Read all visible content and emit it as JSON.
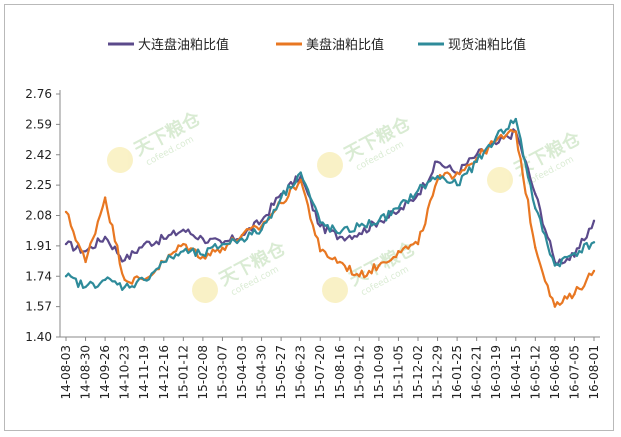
{
  "chart_data": {
    "type": "line",
    "title": "",
    "xlabel": "",
    "ylabel": "",
    "ylim": [
      1.4,
      2.76
    ],
    "y_ticks": [
      "2.76",
      "2.59",
      "2.42",
      "2.25",
      "2.08",
      "1.91",
      "1.74",
      "1.57",
      "1.40"
    ],
    "categories": [
      "14-08-03",
      "14-08-30",
      "14-09-26",
      "14-10-23",
      "14-11-19",
      "14-12-16",
      "15-01-12",
      "15-02-08",
      "15-03-07",
      "15-04-03",
      "15-04-30",
      "15-05-27",
      "15-06-23",
      "15-07-20",
      "15-08-16",
      "15-09-12",
      "15-10-09",
      "15-11-05",
      "15-12-02",
      "15-12-29",
      "16-01-25",
      "16-02-21",
      "16-03-19",
      "16-04-15",
      "16-05-12",
      "16-06-08",
      "16-07-05",
      "16-08-01"
    ],
    "legend_position": "top",
    "grid": false,
    "series": [
      {
        "name": "大连盘油粕比值",
        "color": "#5b4a8b",
        "values": [
          1.92,
          1.88,
          1.96,
          1.83,
          1.92,
          1.95,
          2.0,
          1.95,
          1.92,
          1.97,
          2.05,
          2.2,
          2.3,
          2.02,
          1.96,
          1.98,
          2.05,
          2.1,
          2.2,
          2.38,
          2.32,
          2.42,
          2.48,
          2.55,
          2.2,
          1.82,
          1.85,
          2.05
        ]
      },
      {
        "name": "美盘油粕比值",
        "color": "#e87722",
        "values": [
          2.1,
          1.82,
          2.18,
          1.72,
          1.72,
          1.82,
          1.92,
          1.85,
          1.9,
          1.97,
          2.02,
          2.15,
          2.28,
          1.88,
          1.82,
          1.74,
          1.8,
          1.88,
          1.92,
          2.28,
          2.32,
          2.4,
          2.5,
          2.55,
          1.9,
          1.57,
          1.64,
          1.77
        ]
      },
      {
        "name": "现货油粕比值",
        "color": "#2e8b9a",
        "values": [
          1.74,
          1.68,
          1.72,
          1.68,
          1.72,
          1.82,
          1.88,
          1.86,
          1.92,
          1.95,
          2.0,
          2.18,
          2.32,
          2.04,
          1.98,
          2.02,
          2.05,
          2.12,
          2.22,
          2.3,
          2.25,
          2.38,
          2.52,
          2.62,
          2.12,
          1.8,
          1.87,
          1.93
        ]
      }
    ]
  },
  "watermark": {
    "brand": "天下粮仓",
    "site": "cofeed.com"
  }
}
